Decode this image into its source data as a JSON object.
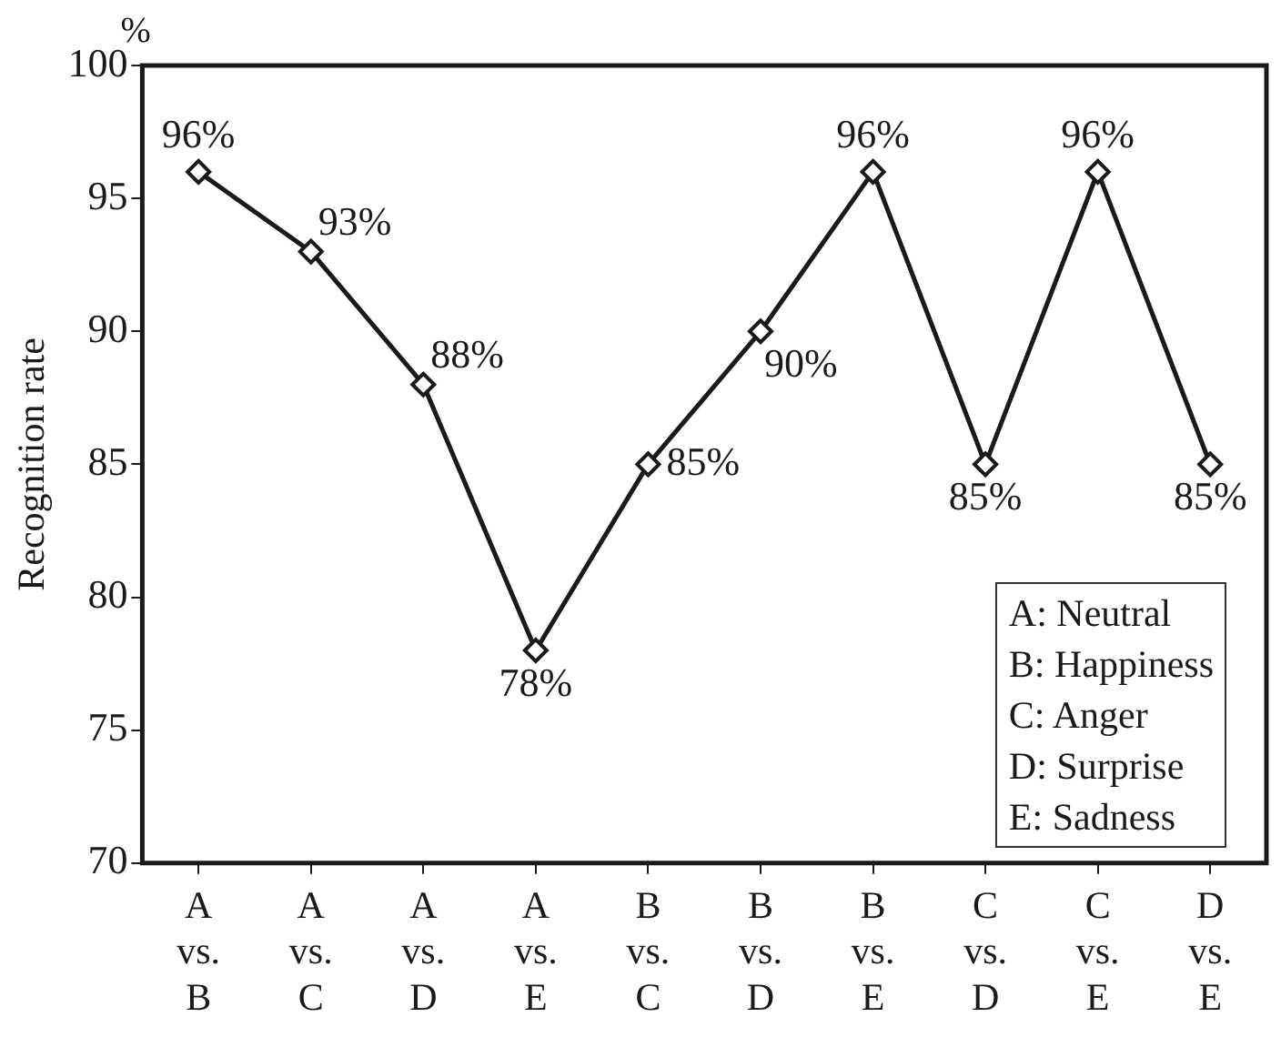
{
  "chart_data": {
    "type": "line",
    "ylabel": "Recognition rate",
    "categories": [
      "A vs. B",
      "A vs. C",
      "A vs. D",
      "A vs. E",
      "B vs. C",
      "B vs. D",
      "B vs. E",
      "C vs. D",
      "C vs. E",
      "D vs. E"
    ],
    "series": [
      {
        "color": "#1a1a1a",
        "values": [
          96,
          93,
          88,
          78,
          85,
          90,
          96,
          85,
          96,
          85
        ],
        "value_labels": [
          "96%",
          "93%",
          "88%",
          "78%",
          "85%",
          "90%",
          "96%",
          "85%",
          "96%",
          "85%"
        ]
      }
    ],
    "ylim": [
      70,
      100
    ],
    "yticks": [
      70,
      75,
      80,
      85,
      90,
      95,
      100
    ],
    "marker": "diamond",
    "line_style": "solid",
    "grid": false,
    "legend": false,
    "annotations": [
      "%",
      "A: Neutral",
      "B: Happiness",
      "C: Anger",
      "D: Surprise",
      "E: Sadness"
    ]
  }
}
